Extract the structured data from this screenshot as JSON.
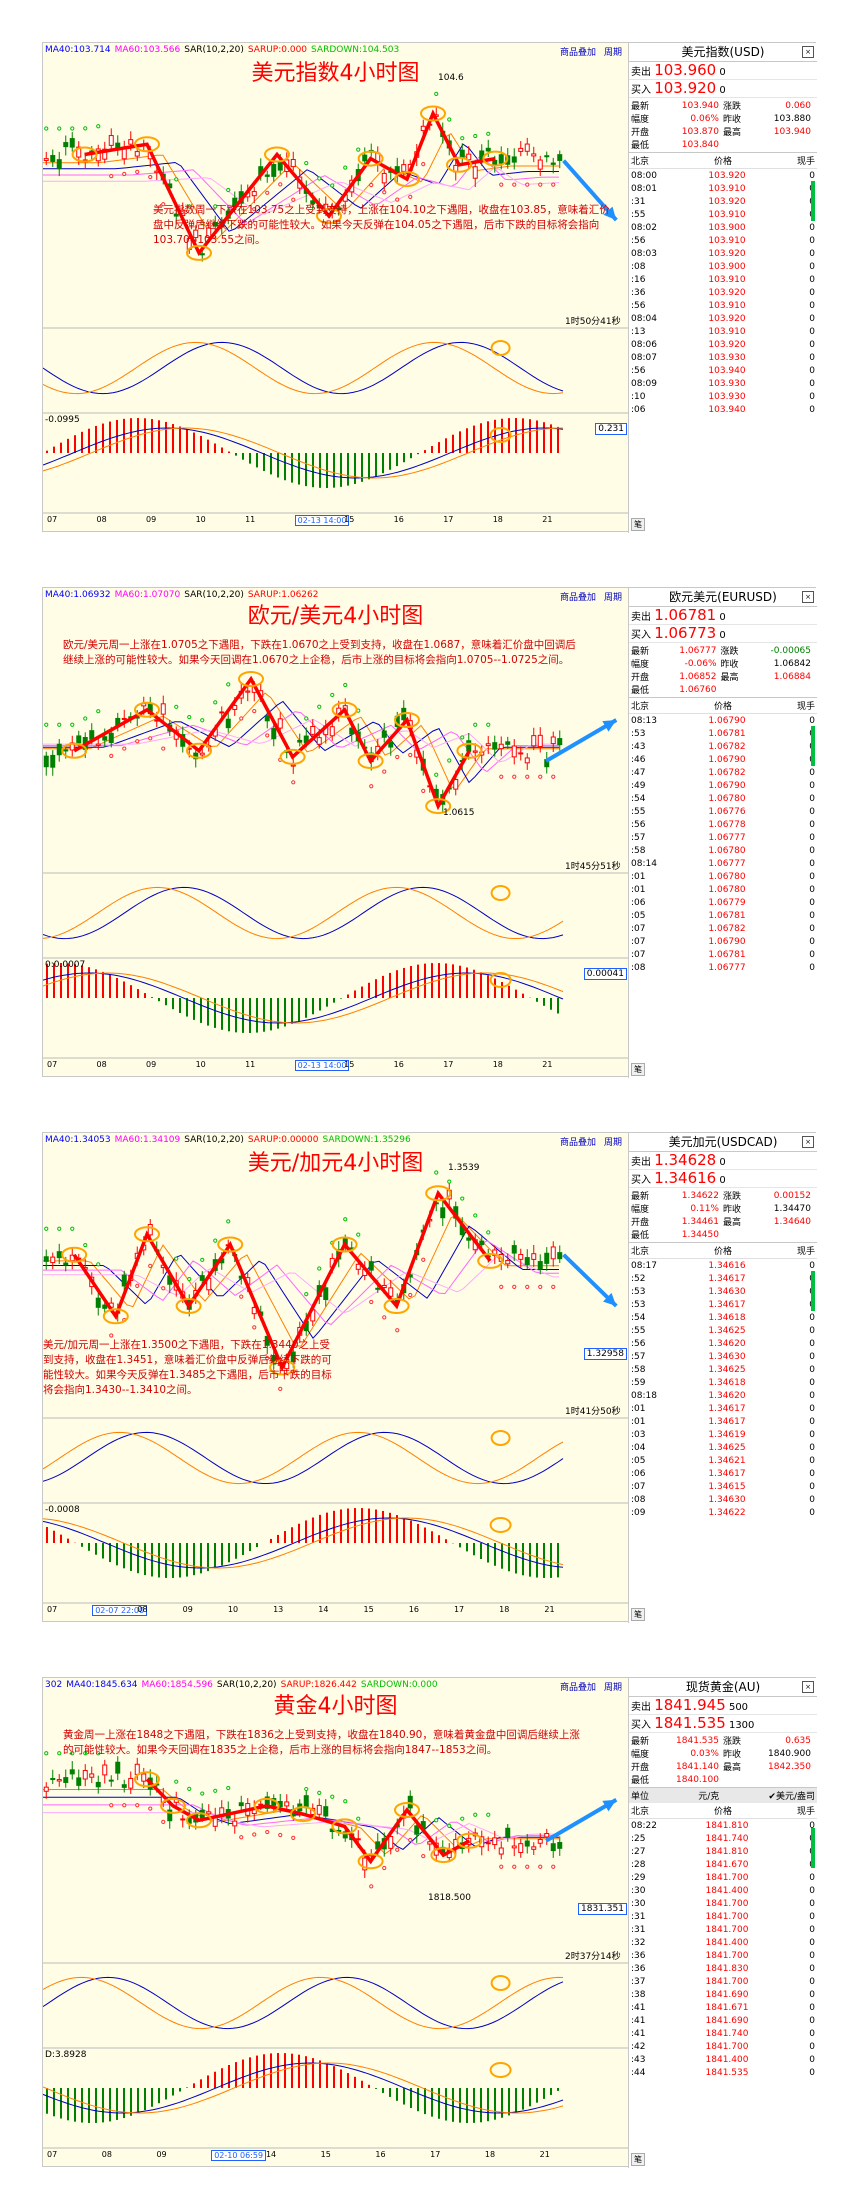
{
  "panels": [
    {
      "legend": [
        {
          "text": "MA40:103.714",
          "color": "#0000ff"
        },
        {
          "text": "MA60:103.566",
          "color": "#ff00ff"
        },
        {
          "text": "SAR(10,2,20)",
          "color": "#000000"
        },
        {
          "text": "SARUP:0.000",
          "color": "#ff0000"
        },
        {
          "text": "SARDOWN:104.503",
          "color": "#00c000"
        }
      ],
      "buttons": [
        "商品叠加",
        "周期"
      ],
      "title": "美元指数4小时图",
      "comment": "美元指数周一下跌在103.75之上受到支持，上涨在104.10之下遇阻，收盘在103.85，意味着汇价盘中反弹后继续下跌的可能性较大。如果今天反弹在104.05之下遇阻，后市下跌的目标将会指向103.70--103.55之间。",
      "peak_label": "104.6",
      "timer": "1时50分41秒",
      "price_box": "0.231",
      "macd_label": "-0.0995",
      "xlabels": [
        "07",
        "08",
        "09",
        "10",
        "11",
        "02-13 14:00",
        "15",
        "16",
        "17",
        "18",
        "21"
      ],
      "x_highlight": "02-13 14:00",
      "quote": {
        "name": "美元指数(USD)",
        "sell_label": "卖出",
        "sell": "103.960",
        "sell_suffix": "0",
        "buy_label": "买入",
        "buy": "103.920",
        "buy_suffix": "0",
        "stats": [
          [
            "最新",
            "103.940",
            "涨跌",
            "0.060"
          ],
          [
            "幅度",
            "0.06%",
            "昨收",
            "103.880"
          ],
          [
            "开盘",
            "103.870",
            "最高",
            "103.940"
          ],
          [
            "最低",
            "103.840",
            "",
            ""
          ]
        ],
        "head": [
          "北京",
          "价格",
          "现手"
        ],
        "ticks": [
          [
            "08:00",
            "103.920",
            "0"
          ],
          [
            "08:01",
            "103.910",
            "0"
          ],
          [
            ":31",
            "103.920",
            "0"
          ],
          [
            ":55",
            "103.910",
            "0"
          ],
          [
            "08:02",
            "103.900",
            "0"
          ],
          [
            ":56",
            "103.910",
            "0"
          ],
          [
            "08:03",
            "103.920",
            "0"
          ],
          [
            ":08",
            "103.900",
            "0"
          ],
          [
            ":16",
            "103.910",
            "0"
          ],
          [
            ":36",
            "103.920",
            "0"
          ],
          [
            ":56",
            "103.910",
            "0"
          ],
          [
            "08:04",
            "103.920",
            "0"
          ],
          [
            ":13",
            "103.910",
            "0"
          ],
          [
            "08:06",
            "103.920",
            "0"
          ],
          [
            "08:07",
            "103.930",
            "0"
          ],
          [
            ":56",
            "103.940",
            "0"
          ],
          [
            "08:09",
            "103.930",
            "0"
          ],
          [
            ":10",
            "103.930",
            "0"
          ],
          [
            ":06",
            "103.940",
            "0"
          ]
        ],
        "tab": "笔"
      }
    },
    {
      "legend": [
        {
          "text": "MA40:1.06932",
          "color": "#0000ff"
        },
        {
          "text": "MA60:1.07070",
          "color": "#ff00ff"
        },
        {
          "text": "SAR(10,2,20)",
          "color": "#000000"
        },
        {
          "text": "SARUP:1.06262",
          "color": "#ff0000"
        }
      ],
      "buttons": [
        "商品叠加",
        "周期"
      ],
      "title": "欧元/美元4小时图",
      "comment": "欧元/美元周一上涨在1.0705之下遇阻，下跌在1.0670之上受到支持，收盘在1.0687，意味着汇价盘中回调后继续上涨的可能性较大。如果今天回调在1.0670之上企稳，后市上涨的目标将会指向1.0705--1.0725之间。",
      "peak_label": "1.0615",
      "timer": "1时45分51秒",
      "price_box": "0.00041",
      "macd_label": "0:0.0007",
      "xlabels": [
        "07",
        "08",
        "09",
        "10",
        "11",
        "02-13 14:00",
        "15",
        "16",
        "17",
        "18",
        "21"
      ],
      "x_highlight": "02-13 14:00",
      "quote": {
        "name": "欧元美元(EURUSD)",
        "sell_label": "卖出",
        "sell": "1.06781",
        "sell_suffix": "0",
        "buy_label": "买入",
        "buy": "1.06773",
        "buy_suffix": "0",
        "stats": [
          [
            "最新",
            "1.06777",
            "涨跌",
            "-0.00065"
          ],
          [
            "幅度",
            "-0.06%",
            "昨收",
            "1.06842"
          ],
          [
            "开盘",
            "1.06852",
            "最高",
            "1.06884"
          ],
          [
            "最低",
            "1.06760",
            "",
            ""
          ]
        ],
        "head": [
          "北京",
          "价格",
          "现手"
        ],
        "ticks": [
          [
            "08:13",
            "1.06790",
            "0"
          ],
          [
            ":53",
            "1.06781",
            "0"
          ],
          [
            ":43",
            "1.06782",
            "0"
          ],
          [
            ":46",
            "1.06790",
            "0"
          ],
          [
            ":47",
            "1.06782",
            "0"
          ],
          [
            ":49",
            "1.06790",
            "0"
          ],
          [
            ":54",
            "1.06780",
            "0"
          ],
          [
            ":55",
            "1.06776",
            "0"
          ],
          [
            ":56",
            "1.06778",
            "0"
          ],
          [
            ":57",
            "1.06777",
            "0"
          ],
          [
            ":58",
            "1.06780",
            "0"
          ],
          [
            "08:14",
            "1.06777",
            "0"
          ],
          [
            ":01",
            "1.06780",
            "0"
          ],
          [
            ":01",
            "1.06780",
            "0"
          ],
          [
            ":06",
            "1.06779",
            "0"
          ],
          [
            ":05",
            "1.06781",
            "0"
          ],
          [
            ":07",
            "1.06782",
            "0"
          ],
          [
            ":07",
            "1.06790",
            "0"
          ],
          [
            ":07",
            "1.06781",
            "0"
          ],
          [
            ":08",
            "1.06777",
            "0"
          ]
        ],
        "tab": "笔"
      }
    },
    {
      "legend": [
        {
          "text": "MA40:1.34053",
          "color": "#0000ff"
        },
        {
          "text": "MA60:1.34109",
          "color": "#ff00ff"
        },
        {
          "text": "SAR(10,2,20)",
          "color": "#000000"
        },
        {
          "text": "SARUP:0.00000",
          "color": "#ff0000"
        },
        {
          "text": "SARDOWN:1.35296",
          "color": "#00c000"
        }
      ],
      "buttons": [
        "商品叠加",
        "周期"
      ],
      "title": "美元/加元4小时图",
      "comment": "美元/加元周一上涨在1.3500之下遇阻，下跌在1.3440之上受到支持，收盘在1.3451，意味着汇价盘中反弹后继续下跌的可能性较大。如果今天反弹在1.3485之下遇阻，后市下跌的目标将会指向1.3430--1.3410之间。",
      "peak_label": "1.3539",
      "timer": "1时41分50秒",
      "price_box": "1.32958",
      "macd_label": "-0.0008",
      "xlabels": [
        "07",
        "02-07 22:00",
        "08",
        "09",
        "10",
        "13",
        "14",
        "15",
        "16",
        "17",
        "18",
        "21"
      ],
      "x_highlight": "02-07 22:00",
      "quote": {
        "name": "美元加元(USDCAD)",
        "sell_label": "卖出",
        "sell": "1.34628",
        "sell_suffix": "0",
        "buy_label": "买入",
        "buy": "1.34616",
        "buy_suffix": "0",
        "stats": [
          [
            "最新",
            "1.34622",
            "涨跌",
            "0.00152"
          ],
          [
            "幅度",
            "0.11%",
            "昨收",
            "1.34470"
          ],
          [
            "开盘",
            "1.34461",
            "最高",
            "1.34640"
          ],
          [
            "最低",
            "1.34450",
            "",
            ""
          ]
        ],
        "head": [
          "北京",
          "价格",
          "现手"
        ],
        "ticks": [
          [
            "08:17",
            "1.34616",
            "0"
          ],
          [
            ":52",
            "1.34617",
            "0"
          ],
          [
            ":53",
            "1.34630",
            "0"
          ],
          [
            ":53",
            "1.34617",
            "0"
          ],
          [
            ":54",
            "1.34618",
            "0"
          ],
          [
            ":55",
            "1.34625",
            "0"
          ],
          [
            ":56",
            "1.34620",
            "0"
          ],
          [
            ":57",
            "1.34630",
            "0"
          ],
          [
            ":58",
            "1.34625",
            "0"
          ],
          [
            ":59",
            "1.34618",
            "0"
          ],
          [
            "08:18",
            "1.34620",
            "0"
          ],
          [
            ":01",
            "1.34617",
            "0"
          ],
          [
            ":01",
            "1.34617",
            "0"
          ],
          [
            ":03",
            "1.34619",
            "0"
          ],
          [
            ":04",
            "1.34625",
            "0"
          ],
          [
            ":05",
            "1.34621",
            "0"
          ],
          [
            ":06",
            "1.34617",
            "0"
          ],
          [
            ":07",
            "1.34615",
            "0"
          ],
          [
            ":08",
            "1.34630",
            "0"
          ],
          [
            ":09",
            "1.34622",
            "0"
          ]
        ],
        "tab": "笔"
      }
    },
    {
      "legend": [
        {
          "text": "302",
          "color": "#0000ff"
        },
        {
          "text": "MA40:1845.634",
          "color": "#0000ff"
        },
        {
          "text": "MA60:1854.596",
          "color": "#ff00ff"
        },
        {
          "text": "SAR(10,2,20)",
          "color": "#000000"
        },
        {
          "text": "SARUP:1826.442",
          "color": "#ff0000"
        },
        {
          "text": "SARDOWN:0.000",
          "color": "#00c000"
        }
      ],
      "buttons": [
        "商品叠加",
        "周期"
      ],
      "title": "黄金4小时图",
      "comment": "黄金周一上涨在1848之下遇阻，下跌在1836之上受到支持，收盘在1840.90，意味着黄金盘中回调后继续上涨的可能性较大。如果今天回调在1835之上企稳，后市上涨的目标将会指向1847--1853之间。",
      "peak_label": "1818.500",
      "timer": "2时37分14秒",
      "price_box": "1831.351",
      "macd_label": "D:3.8928",
      "xlabels": [
        "07",
        "08",
        "09",
        "02-10 06:59",
        "14",
        "15",
        "16",
        "17",
        "18",
        "21"
      ],
      "x_highlight": "02-10 06:59",
      "quote": {
        "name": "现货黄金(AU)",
        "sell_label": "卖出",
        "sell": "1841.945",
        "sell_suffix": "500",
        "buy_label": "买入",
        "buy": "1841.535",
        "buy_suffix": "1300",
        "stats": [
          [
            "最新",
            "1841.535",
            "涨跌",
            "0.635"
          ],
          [
            "幅度",
            "0.03%",
            "昨收",
            "1840.900"
          ],
          [
            "开盘",
            "1841.140",
            "最高",
            "1842.350"
          ],
          [
            "最低",
            "1840.100",
            "",
            ""
          ]
        ],
        "unit_row": [
          "单位",
          "元/克",
          "✔美元/盎司"
        ],
        "head": [
          "北京",
          "价格",
          "现手"
        ],
        "ticks": [
          [
            "08:22",
            "1841.810",
            "0"
          ],
          [
            ":25",
            "1841.740",
            "0"
          ],
          [
            ":27",
            "1841.810",
            "0"
          ],
          [
            ":28",
            "1841.670",
            "0"
          ],
          [
            ":29",
            "1841.700",
            "0"
          ],
          [
            ":30",
            "1841.400",
            "0"
          ],
          [
            ":30",
            "1841.700",
            "0"
          ],
          [
            ":31",
            "1841.700",
            "0"
          ],
          [
            ":31",
            "1841.700",
            "0"
          ],
          [
            ":32",
            "1841.400",
            "0"
          ],
          [
            ":36",
            "1841.700",
            "0"
          ],
          [
            ":36",
            "1841.830",
            "0"
          ],
          [
            ":37",
            "1841.700",
            "0"
          ],
          [
            ":38",
            "1841.690",
            "0"
          ],
          [
            ":41",
            "1841.671",
            "0"
          ],
          [
            ":41",
            "1841.690",
            "0"
          ],
          [
            ":41",
            "1841.740",
            "0"
          ],
          [
            ":42",
            "1841.700",
            "0"
          ],
          [
            ":43",
            "1841.400",
            "0"
          ],
          [
            ":44",
            "1841.535",
            "0"
          ]
        ],
        "tab": "笔"
      }
    }
  ],
  "chart_data": [
    {
      "type": "candlestick",
      "title": "美元指数4小时图",
      "zigzag": [
        [
          0.08,
          0.3
        ],
        [
          0.2,
          0.25
        ],
        [
          0.3,
          0.78
        ],
        [
          0.45,
          0.3
        ],
        [
          0.55,
          0.6
        ],
        [
          0.63,
          0.32
        ],
        [
          0.7,
          0.42
        ],
        [
          0.75,
          0.1
        ],
        [
          0.8,
          0.35
        ],
        [
          0.87,
          0.32
        ]
      ],
      "target_arrow": [
        [
          0.89,
          0.33
        ],
        [
          0.98,
          0.62
        ]
      ],
      "osc_min": 0,
      "osc_max": 1
    },
    {
      "type": "candlestick",
      "title": "欧元/美元4小时图",
      "zigzag": [
        [
          0.06,
          0.55
        ],
        [
          0.2,
          0.35
        ],
        [
          0.3,
          0.55
        ],
        [
          0.4,
          0.2
        ],
        [
          0.48,
          0.58
        ],
        [
          0.58,
          0.35
        ],
        [
          0.63,
          0.6
        ],
        [
          0.7,
          0.4
        ],
        [
          0.76,
          0.82
        ],
        [
          0.82,
          0.55
        ]
      ],
      "target_arrow": [
        [
          0.86,
          0.6
        ],
        [
          0.98,
          0.4
        ]
      ],
      "osc_min": 0,
      "osc_max": 1
    },
    {
      "type": "candlestick",
      "title": "美元/加元4小时图",
      "zigzag": [
        [
          0.06,
          0.35
        ],
        [
          0.14,
          0.65
        ],
        [
          0.2,
          0.25
        ],
        [
          0.28,
          0.6
        ],
        [
          0.36,
          0.3
        ],
        [
          0.46,
          0.9
        ],
        [
          0.58,
          0.3
        ],
        [
          0.68,
          0.6
        ],
        [
          0.76,
          0.05
        ],
        [
          0.86,
          0.38
        ]
      ],
      "target_arrow": [
        [
          0.89,
          0.35
        ],
        [
          0.98,
          0.6
        ]
      ],
      "osc_min": 0,
      "osc_max": 1
    },
    {
      "type": "candlestick",
      "title": "黄金4小时图",
      "zigzag": [
        [
          0.2,
          0.25
        ],
        [
          0.25,
          0.38
        ],
        [
          0.3,
          0.45
        ],
        [
          0.43,
          0.38
        ],
        [
          0.5,
          0.42
        ],
        [
          0.58,
          0.48
        ],
        [
          0.63,
          0.65
        ],
        [
          0.7,
          0.4
        ],
        [
          0.77,
          0.62
        ],
        [
          0.82,
          0.55
        ]
      ],
      "target_arrow": [
        [
          0.86,
          0.55
        ],
        [
          0.98,
          0.35
        ]
      ],
      "osc_min": 0,
      "osc_max": 1
    }
  ]
}
